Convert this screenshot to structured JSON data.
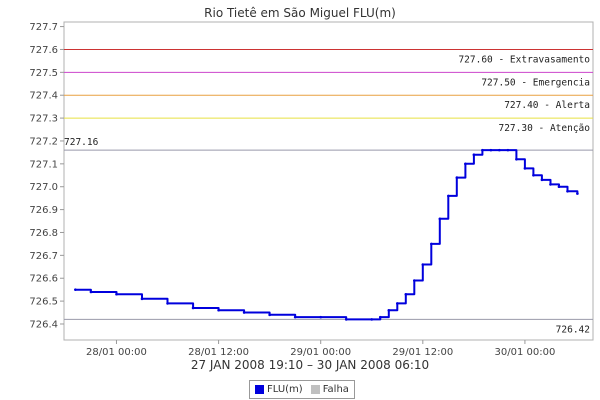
{
  "chart_data": {
    "type": "line",
    "title": "Rio Tietê em São Miguel FLU(m)",
    "xlabel": "27 JAN 2008 19:10 – 30 JAN 2008 06:10",
    "ylabel": "",
    "ylim": [
      726.33,
      727.72
    ],
    "y_ticks": [
      726.4,
      726.5,
      726.6,
      726.7,
      726.8,
      726.9,
      727.0,
      727.1,
      727.2,
      727.3,
      727.4,
      727.5,
      727.6,
      727.7
    ],
    "y_tick_labels": [
      "726.4",
      "726.5",
      "726.6",
      "726.7",
      "726.8",
      "726.9",
      "727.0",
      "727.1",
      "727.2",
      "727.3",
      "727.4",
      "727.5",
      "727.6",
      "727.7"
    ],
    "x_ticks": [
      "28/01 00:00",
      "28/01 12:00",
      "29/01 00:00",
      "29/01 12:00",
      "30/01 00:00"
    ],
    "series": [
      {
        "name": "FLU(m)",
        "color": "#0000dd",
        "x": [
          "27/01 19:10",
          "27/01 21:00",
          "28/01 00:00",
          "28/01 03:00",
          "28/01 06:00",
          "28/01 09:00",
          "28/01 12:00",
          "28/01 15:00",
          "28/01 18:00",
          "28/01 21:00",
          "29/01 00:00",
          "29/01 03:00",
          "29/01 06:00",
          "29/01 07:00",
          "29/01 08:00",
          "29/01 09:00",
          "29/01 10:00",
          "29/01 11:00",
          "29/01 12:00",
          "29/01 13:00",
          "29/01 14:00",
          "29/01 15:00",
          "29/01 16:00",
          "29/01 17:00",
          "29/01 18:00",
          "29/01 19:00",
          "29/01 20:00",
          "29/01 21:00",
          "29/01 22:00",
          "29/01 23:00",
          "30/01 00:00",
          "30/01 01:00",
          "30/01 02:00",
          "30/01 03:00",
          "30/01 04:00",
          "30/01 05:00",
          "30/01 06:10"
        ],
        "y": [
          726.55,
          726.54,
          726.53,
          726.51,
          726.49,
          726.47,
          726.46,
          726.45,
          726.44,
          726.43,
          726.43,
          726.42,
          726.42,
          726.43,
          726.46,
          726.49,
          726.53,
          726.59,
          726.66,
          726.75,
          726.86,
          726.96,
          727.04,
          727.1,
          727.14,
          727.16,
          727.16,
          727.16,
          727.16,
          727.12,
          727.08,
          727.05,
          727.03,
          727.01,
          727.0,
          726.98,
          726.97
        ]
      },
      {
        "name": "Falha",
        "color": "#c0c0c0",
        "x": [],
        "y": []
      }
    ],
    "reference_lines": [
      {
        "value": 727.6,
        "label": "727.60 - Extravasamento",
        "color": "#cc3333"
      },
      {
        "value": 727.5,
        "label": "727.50 - Emergencia",
        "color": "#cc44cc"
      },
      {
        "value": 727.4,
        "label": "727.40 - Alerta",
        "color": "#e8a040"
      },
      {
        "value": 727.3,
        "label": "727.30 - Atenção",
        "color": "#e8e040"
      },
      {
        "value": 727.16,
        "label": "727.16",
        "color": "#9999aa"
      },
      {
        "value": 726.42,
        "label": "726.42",
        "color": "#9999aa"
      }
    ],
    "grid": false,
    "legend_position": "bottom"
  },
  "legend": {
    "items": [
      {
        "label": "FLU(m)",
        "color": "#0000dd"
      },
      {
        "label": "Falha",
        "color": "#c0c0c0"
      }
    ]
  }
}
